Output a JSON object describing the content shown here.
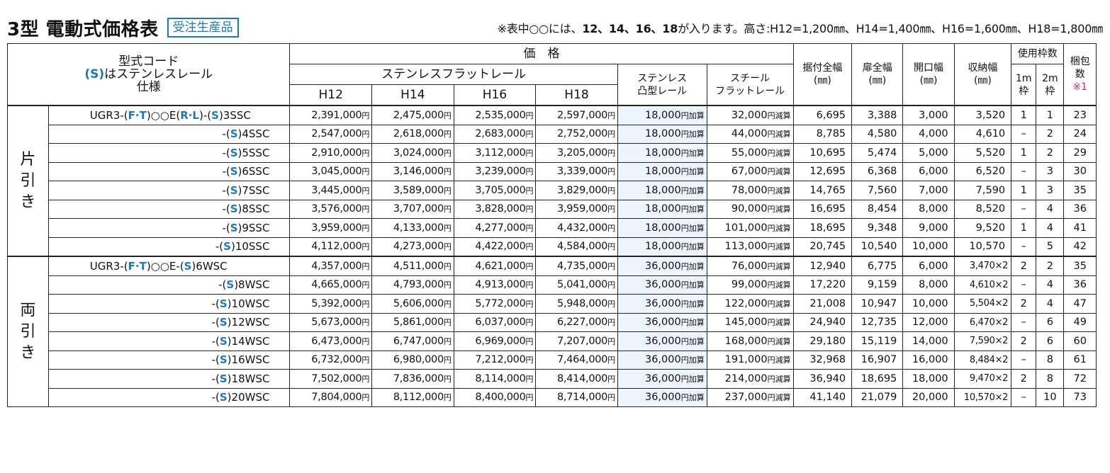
{
  "title": "3型 電動式価格表",
  "badge": "受注生産品",
  "note": {
    "pre": "※表中○○には、",
    "bold": "12、14、16、18",
    "post": "が入ります。高さ:H12=1,200㎜、H14=1,400㎜、H16=1,600㎜、H18=1,800㎜"
  },
  "headers": {
    "model_l1": "型式コード",
    "model_l2_s": "(S)",
    "model_l2_rest": "はステンレスレール",
    "model_l3": "仕様",
    "price": "価　格",
    "stainless_flat": "ステンレスフラットレール",
    "h12": "H12",
    "h14": "H14",
    "h16": "H16",
    "h18": "H18",
    "stainless_convex_l1": "ステンレス",
    "stainless_convex_l2": "凸型レール",
    "steel_flat_l1": "スチール",
    "steel_flat_l2": "フラットレール",
    "install_width_l1": "据付全幅",
    "install_width_l2": "(㎜)",
    "door_width_l1": "扉全幅",
    "door_width_l2": "(㎜)",
    "opening_width_l1": "開口幅",
    "opening_width_l2": "(㎜)",
    "storage_width_l1": "収納幅",
    "storage_width_l2": "(㎜)",
    "frames": "使用枠数",
    "frame1_l1": "1m",
    "frame1_l2": "枠",
    "frame2_l1": "2m",
    "frame2_l2": "枠",
    "pack_l1": "梱包",
    "pack_l2": "数",
    "pack_l3": "※1"
  },
  "units": {
    "yen": "円",
    "add": "円加算",
    "sub": "円減算"
  },
  "groups": [
    {
      "label_chars": [
        "片",
        "引",
        "き"
      ],
      "rows": [
        {
          "model_prefix": "UGR3-(",
          "model_ft": "F·T",
          "model_mid": ")○○E(",
          "model_rl": "R·L",
          "model_mid2": ")-(",
          "model_s": "S",
          "model_suffix": ")3SSC",
          "h12": "2,391,000",
          "h14": "2,475,000",
          "h16": "2,535,000",
          "h18": "2,597,000",
          "convex": "18,000",
          "steel": "32,000",
          "install": "6,695",
          "door": "3,388",
          "opening": "3,000",
          "storage": "3,520",
          "f1": "1",
          "f2": "1",
          "pack": "23"
        },
        {
          "model_prefix": "-(",
          "model_s": "S",
          "model_suffix": ")4SSC",
          "h12": "2,547,000",
          "h14": "2,618,000",
          "h16": "2,683,000",
          "h18": "2,752,000",
          "convex": "18,000",
          "steel": "44,000",
          "install": "8,785",
          "door": "4,580",
          "opening": "4,000",
          "storage": "4,610",
          "f1": "–",
          "f2": "2",
          "pack": "24"
        },
        {
          "model_prefix": "-(",
          "model_s": "S",
          "model_suffix": ")5SSC",
          "h12": "2,910,000",
          "h14": "3,024,000",
          "h16": "3,112,000",
          "h18": "3,205,000",
          "convex": "18,000",
          "steel": "55,000",
          "install": "10,695",
          "door": "5,474",
          "opening": "5,000",
          "storage": "5,520",
          "f1": "1",
          "f2": "2",
          "pack": "29"
        },
        {
          "model_prefix": "-(",
          "model_s": "S",
          "model_suffix": ")6SSC",
          "h12": "3,045,000",
          "h14": "3,146,000",
          "h16": "3,239,000",
          "h18": "3,339,000",
          "convex": "18,000",
          "steel": "67,000",
          "install": "12,695",
          "door": "6,368",
          "opening": "6,000",
          "storage": "6,520",
          "f1": "–",
          "f2": "3",
          "pack": "30"
        },
        {
          "model_prefix": "-(",
          "model_s": "S",
          "model_suffix": ")7SSC",
          "h12": "3,445,000",
          "h14": "3,589,000",
          "h16": "3,705,000",
          "h18": "3,829,000",
          "convex": "18,000",
          "steel": "78,000",
          "install": "14,765",
          "door": "7,560",
          "opening": "7,000",
          "storage": "7,590",
          "f1": "1",
          "f2": "3",
          "pack": "35"
        },
        {
          "model_prefix": "-(",
          "model_s": "S",
          "model_suffix": ")8SSC",
          "h12": "3,576,000",
          "h14": "3,707,000",
          "h16": "3,828,000",
          "h18": "3,959,000",
          "convex": "18,000",
          "steel": "90,000",
          "install": "16,695",
          "door": "8,454",
          "opening": "8,000",
          "storage": "8,520",
          "f1": "–",
          "f2": "4",
          "pack": "36"
        },
        {
          "model_prefix": "-(",
          "model_s": "S",
          "model_suffix": ")9SSC",
          "h12": "3,959,000",
          "h14": "4,133,000",
          "h16": "4,277,000",
          "h18": "4,432,000",
          "convex": "18,000",
          "steel": "101,000",
          "install": "18,695",
          "door": "9,348",
          "opening": "9,000",
          "storage": "9,520",
          "f1": "1",
          "f2": "4",
          "pack": "41"
        },
        {
          "model_prefix": "-(",
          "model_s": "S",
          "model_suffix": ")10SSC",
          "h12": "4,112,000",
          "h14": "4,273,000",
          "h16": "4,422,000",
          "h18": "4,584,000",
          "convex": "18,000",
          "steel": "113,000",
          "install": "20,745",
          "door": "10,540",
          "opening": "10,000",
          "storage": "10,570",
          "f1": "–",
          "f2": "5",
          "pack": "42"
        }
      ]
    },
    {
      "label_chars": [
        "両",
        "引",
        "き"
      ],
      "rows": [
        {
          "model_prefix": "UGR3-(",
          "model_ft": "F·T",
          "model_mid": ")○○E-(",
          "model_s": "S",
          "model_suffix": ")6WSC",
          "h12": "4,357,000",
          "h14": "4,511,000",
          "h16": "4,621,000",
          "h18": "4,735,000",
          "convex": "36,000",
          "steel": "76,000",
          "install": "12,940",
          "door": "6,775",
          "opening": "6,000",
          "storage": "3,470×2",
          "f1": "2",
          "f2": "2",
          "pack": "35"
        },
        {
          "model_prefix": "-(",
          "model_s": "S",
          "model_suffix": ")8WSC",
          "h12": "4,665,000",
          "h14": "4,793,000",
          "h16": "4,913,000",
          "h18": "5,041,000",
          "convex": "36,000",
          "steel": "99,000",
          "install": "17,220",
          "door": "9,159",
          "opening": "8,000",
          "storage": "4,610×2",
          "f1": "–",
          "f2": "4",
          "pack": "36"
        },
        {
          "model_prefix": "-(",
          "model_s": "S",
          "model_suffix": ")10WSC",
          "h12": "5,392,000",
          "h14": "5,606,000",
          "h16": "5,772,000",
          "h18": "5,948,000",
          "convex": "36,000",
          "steel": "122,000",
          "install": "21,008",
          "door": "10,947",
          "opening": "10,000",
          "storage": "5,504×2",
          "f1": "2",
          "f2": "4",
          "pack": "47"
        },
        {
          "model_prefix": "-(",
          "model_s": "S",
          "model_suffix": ")12WSC",
          "h12": "5,673,000",
          "h14": "5,861,000",
          "h16": "6,037,000",
          "h18": "6,227,000",
          "convex": "36,000",
          "steel": "145,000",
          "install": "24,940",
          "door": "12,735",
          "opening": "12,000",
          "storage": "6,470×2",
          "f1": "–",
          "f2": "6",
          "pack": "49"
        },
        {
          "model_prefix": "-(",
          "model_s": "S",
          "model_suffix": ")14WSC",
          "h12": "6,473,000",
          "h14": "6,747,000",
          "h16": "6,969,000",
          "h18": "7,207,000",
          "convex": "36,000",
          "steel": "168,000",
          "install": "29,180",
          "door": "15,119",
          "opening": "14,000",
          "storage": "7,590×2",
          "f1": "2",
          "f2": "6",
          "pack": "60"
        },
        {
          "model_prefix": "-(",
          "model_s": "S",
          "model_suffix": ")16WSC",
          "h12": "6,732,000",
          "h14": "6,980,000",
          "h16": "7,212,000",
          "h18": "7,464,000",
          "convex": "36,000",
          "steel": "191,000",
          "install": "32,968",
          "door": "16,907",
          "opening": "16,000",
          "storage": "8,484×2",
          "f1": "–",
          "f2": "8",
          "pack": "61"
        },
        {
          "model_prefix": "-(",
          "model_s": "S",
          "model_suffix": ")18WSC",
          "h12": "7,502,000",
          "h14": "7,836,000",
          "h16": "8,114,000",
          "h18": "8,414,000",
          "convex": "36,000",
          "steel": "214,000",
          "install": "36,940",
          "door": "18,695",
          "opening": "18,000",
          "storage": "9,470×2",
          "f1": "2",
          "f2": "8",
          "pack": "72"
        },
        {
          "model_prefix": "-(",
          "model_s": "S",
          "model_suffix": ")20WSC",
          "h12": "7,804,000",
          "h14": "8,112,000",
          "h16": "8,400,000",
          "h18": "8,714,000",
          "convex": "36,000",
          "steel": "237,000",
          "install": "41,140",
          "door": "21,079",
          "opening": "20,000",
          "storage": "10,570×2",
          "f1": "–",
          "f2": "10",
          "pack": "73"
        }
      ]
    }
  ]
}
